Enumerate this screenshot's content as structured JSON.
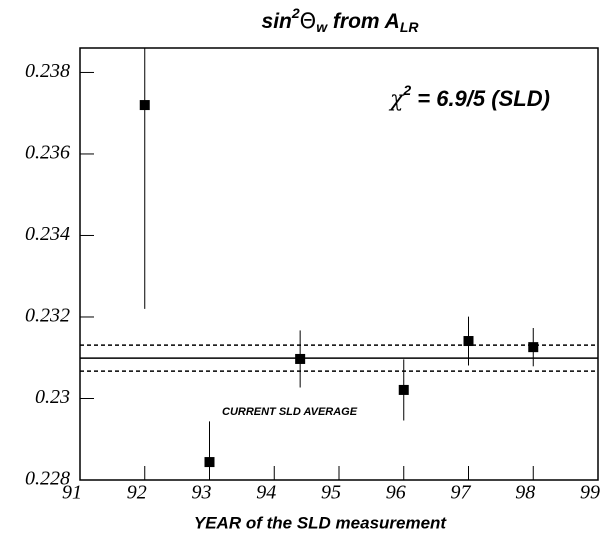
{
  "chart_data": {
    "type": "scatter",
    "title": [
      "sin",
      "2",
      "Θ",
      "w",
      " from A",
      "LR"
    ],
    "xlabel": "YEAR of the SLD measurement",
    "annotation": [
      "χ",
      "2",
      " = 6.9/5 (SLD)"
    ],
    "average_label": "CURRENT SLD  AVERAGE",
    "average": 0.23099,
    "average_error": 0.00032,
    "xlim": [
      91,
      99
    ],
    "ylim": [
      0.228,
      0.2386
    ],
    "xticks": [
      91,
      92,
      93,
      94,
      95,
      96,
      97,
      98,
      99
    ],
    "yticks": [
      0.228,
      0.23,
      0.232,
      0.234,
      0.236,
      0.238
    ],
    "series": [
      {
        "color": "#000000",
        "x": [
          92,
          93,
          94.4,
          96,
          97,
          98
        ],
        "values": [
          0.2372,
          0.22844,
          0.23097,
          0.23021,
          0.23141,
          0.23126
        ],
        "errors": [
          0.005,
          0.001,
          0.0007,
          0.00075,
          0.0006,
          0.00047
        ]
      }
    ]
  }
}
